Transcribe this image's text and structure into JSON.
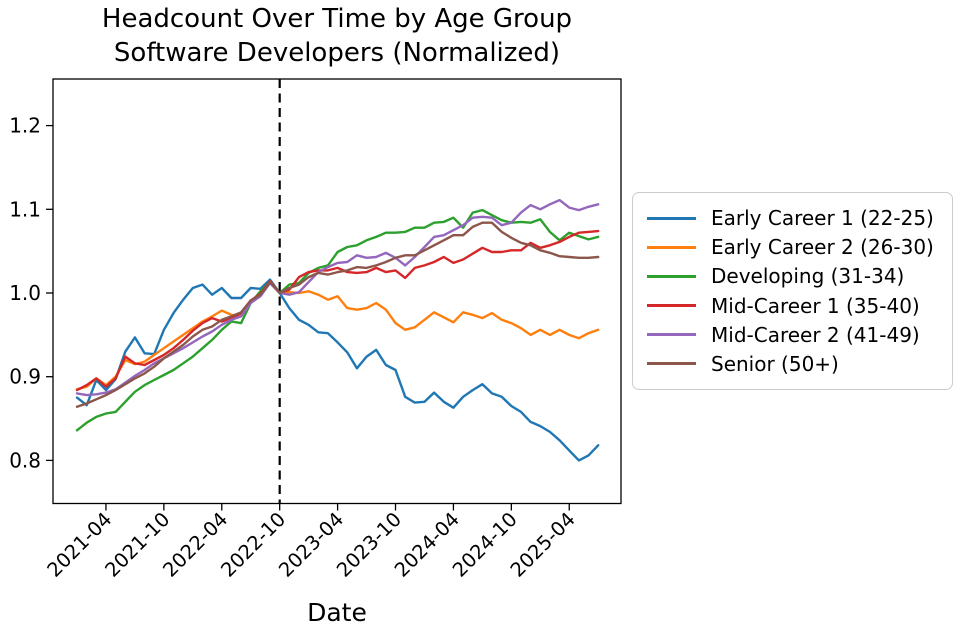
{
  "title": {
    "line1": "Headcount Over Time by Age Group",
    "line2": "Software Developers (Normalized)"
  },
  "chart_data": {
    "type": "line",
    "title": "Headcount Over Time by Age Group\nSoftware Developers (Normalized)",
    "xlabel": "Date",
    "ylabel": "",
    "grid": false,
    "legend_position": "right-outside",
    "ylim": [
      0.748,
      1.256
    ],
    "yticks": [
      0.8,
      0.9,
      1.0,
      1.1,
      1.2
    ],
    "xticks": [
      "2021-04",
      "2021-10",
      "2022-04",
      "2022-10",
      "2023-04",
      "2023-10",
      "2024-04",
      "2024-10",
      "2025-04"
    ],
    "vline": {
      "x": "2022-10",
      "style": "dashed",
      "color": "#000000"
    },
    "x": [
      "2021-01",
      "2021-02",
      "2021-03",
      "2021-04",
      "2021-05",
      "2021-06",
      "2021-07",
      "2021-08",
      "2021-09",
      "2021-10",
      "2021-11",
      "2021-12",
      "2022-01",
      "2022-02",
      "2022-03",
      "2022-04",
      "2022-05",
      "2022-06",
      "2022-07",
      "2022-08",
      "2022-09",
      "2022-10",
      "2022-11",
      "2022-12",
      "2023-01",
      "2023-02",
      "2023-03",
      "2023-04",
      "2023-05",
      "2023-06",
      "2023-07",
      "2023-08",
      "2023-09",
      "2023-10",
      "2023-11",
      "2023-12",
      "2024-01",
      "2024-02",
      "2024-03",
      "2024-04",
      "2024-05",
      "2024-06",
      "2024-07",
      "2024-08",
      "2024-09",
      "2024-10",
      "2024-11",
      "2024-12",
      "2025-01",
      "2025-02",
      "2025-03",
      "2025-04",
      "2025-05",
      "2025-06",
      "2025-07"
    ],
    "series": [
      {
        "name": "Early Career 1 (22-25)",
        "color": "#1f77b4",
        "values": [
          0.875,
          0.866,
          0.896,
          0.884,
          0.897,
          0.93,
          0.947,
          0.928,
          0.927,
          0.956,
          0.976,
          0.992,
          1.006,
          1.01,
          0.998,
          1.006,
          0.994,
          0.994,
          1.006,
          1.005,
          1.016,
          1.0,
          0.982,
          0.968,
          0.962,
          0.953,
          0.952,
          0.941,
          0.929,
          0.91,
          0.924,
          0.932,
          0.914,
          0.908,
          0.876,
          0.869,
          0.87,
          0.881,
          0.87,
          0.863,
          0.876,
          0.884,
          0.891,
          0.88,
          0.876,
          0.865,
          0.858,
          0.846,
          0.841,
          0.834,
          0.824,
          0.812,
          0.8,
          0.806,
          0.818
        ]
      },
      {
        "name": "Early Career 2 (26-30)",
        "color": "#ff7f0e",
        "values": [
          0.885,
          0.888,
          0.898,
          0.89,
          0.9,
          0.92,
          0.915,
          0.918,
          0.926,
          0.934,
          0.942,
          0.95,
          0.958,
          0.966,
          0.972,
          0.979,
          0.974,
          0.973,
          0.99,
          0.997,
          1.014,
          1.0,
          1.001,
          1.0,
          1.002,
          0.998,
          0.992,
          0.996,
          0.982,
          0.98,
          0.982,
          0.988,
          0.98,
          0.964,
          0.956,
          0.959,
          0.968,
          0.977,
          0.971,
          0.965,
          0.977,
          0.974,
          0.97,
          0.976,
          0.968,
          0.964,
          0.958,
          0.95,
          0.956,
          0.95,
          0.956,
          0.95,
          0.946,
          0.952,
          0.956
        ]
      },
      {
        "name": "Developing (31-34)",
        "color": "#2ca02c",
        "values": [
          0.836,
          0.845,
          0.852,
          0.856,
          0.858,
          0.87,
          0.882,
          0.89,
          0.896,
          0.902,
          0.908,
          0.916,
          0.924,
          0.934,
          0.944,
          0.956,
          0.966,
          0.964,
          0.988,
          1.002,
          1.013,
          1.0,
          1.01,
          1.012,
          1.024,
          1.03,
          1.033,
          1.049,
          1.055,
          1.057,
          1.063,
          1.067,
          1.072,
          1.072,
          1.073,
          1.078,
          1.078,
          1.084,
          1.085,
          1.09,
          1.078,
          1.096,
          1.099,
          1.093,
          1.087,
          1.084,
          1.085,
          1.084,
          1.088,
          1.073,
          1.063,
          1.072,
          1.068,
          1.064,
          1.067
        ]
      },
      {
        "name": "Mid-Career 1 (35-40)",
        "color": "#d62728",
        "values": [
          0.884,
          0.89,
          0.898,
          0.888,
          0.898,
          0.924,
          0.916,
          0.914,
          0.92,
          0.926,
          0.934,
          0.944,
          0.955,
          0.964,
          0.97,
          0.966,
          0.97,
          0.976,
          0.991,
          0.999,
          1.014,
          1.0,
          1.004,
          1.019,
          1.025,
          1.027,
          1.027,
          1.03,
          1.025,
          1.024,
          1.025,
          1.03,
          1.025,
          1.027,
          1.018,
          1.03,
          1.033,
          1.037,
          1.043,
          1.036,
          1.04,
          1.047,
          1.054,
          1.049,
          1.049,
          1.051,
          1.051,
          1.06,
          1.054,
          1.057,
          1.061,
          1.067,
          1.072,
          1.073,
          1.074
        ]
      },
      {
        "name": "Mid-Career 2 (41-49)",
        "color": "#9467bd",
        "values": [
          0.88,
          0.878,
          0.879,
          0.881,
          0.885,
          0.893,
          0.901,
          0.908,
          0.916,
          0.922,
          0.928,
          0.934,
          0.941,
          0.948,
          0.954,
          0.962,
          0.968,
          0.972,
          0.988,
          0.996,
          1.012,
          1.0,
          0.998,
          1.001,
          1.013,
          1.025,
          1.031,
          1.036,
          1.037,
          1.045,
          1.042,
          1.043,
          1.048,
          1.042,
          1.033,
          1.043,
          1.055,
          1.067,
          1.069,
          1.075,
          1.081,
          1.09,
          1.091,
          1.09,
          1.081,
          1.084,
          1.096,
          1.105,
          1.1,
          1.106,
          1.111,
          1.102,
          1.099,
          1.103,
          1.106
        ]
      },
      {
        "name": "Senior (50+)",
        "color": "#8c564b",
        "values": [
          0.864,
          0.868,
          0.873,
          0.878,
          0.884,
          0.891,
          0.898,
          0.904,
          0.912,
          0.922,
          0.93,
          0.938,
          0.948,
          0.956,
          0.96,
          0.968,
          0.972,
          0.977,
          0.991,
          0.998,
          1.013,
          1.0,
          1.006,
          1.01,
          1.019,
          1.024,
          1.022,
          1.025,
          1.027,
          1.031,
          1.03,
          1.033,
          1.037,
          1.042,
          1.045,
          1.045,
          1.051,
          1.057,
          1.063,
          1.069,
          1.069,
          1.079,
          1.084,
          1.084,
          1.073,
          1.066,
          1.06,
          1.057,
          1.051,
          1.048,
          1.044,
          1.043,
          1.042,
          1.042,
          1.043
        ]
      }
    ]
  }
}
